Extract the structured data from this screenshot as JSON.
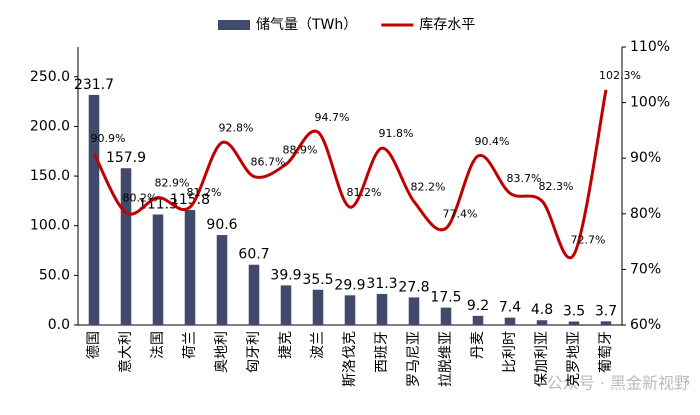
{
  "chart_data": {
    "type": "bar-line",
    "categories": [
      "德国",
      "意大利",
      "法国",
      "荷兰",
      "奥地利",
      "匈牙利",
      "捷克",
      "波兰",
      "斯洛伐克",
      "西班牙",
      "罗马尼亚",
      "拉脱维亚",
      "丹麦",
      "比利时",
      "保加利亚",
      "克罗地亚",
      "葡萄牙"
    ],
    "series": [
      {
        "name": "储气量（TWh）",
        "type": "bar",
        "color": "#404a6b",
        "values": [
          231.7,
          157.9,
          111.3,
          115.8,
          90.6,
          60.7,
          39.9,
          35.5,
          29.9,
          31.3,
          27.8,
          17.5,
          9.2,
          7.4,
          4.8,
          3.5,
          3.7
        ]
      },
      {
        "name": "库存水平",
        "type": "line",
        "axis": "y2",
        "color": "#c00000",
        "values": [
          90.9,
          80.2,
          82.9,
          81.2,
          92.8,
          86.7,
          88.9,
          94.7,
          81.2,
          91.8,
          82.2,
          77.4,
          90.4,
          83.7,
          82.3,
          72.7,
          102.3
        ],
        "value_labels": [
          "90.9%",
          "80.2%",
          "82.9%",
          "81.2%",
          "92.8%",
          "86.7%",
          "88.9%",
          "94.7%",
          "81.2%",
          "91.8%",
          "82.2%",
          "77.4%",
          "90.4%",
          "83.7%",
          "82.3%",
          "72.7%",
          "102.3%"
        ]
      }
    ],
    "ylim": [
      0,
      280
    ],
    "yticks": [
      {
        "value": 0,
        "label": "0.0"
      },
      {
        "value": 50,
        "label": "50.0"
      },
      {
        "value": 100,
        "label": "100.0"
      },
      {
        "value": 150,
        "label": "150.0"
      },
      {
        "value": 200,
        "label": "200.0"
      },
      {
        "value": 250,
        "label": "250.0"
      }
    ],
    "y2lim": [
      60,
      110
    ],
    "y2ticks": [
      {
        "value": 60,
        "label": "60%"
      },
      {
        "value": 70,
        "label": "70%"
      },
      {
        "value": 80,
        "label": "80%"
      },
      {
        "value": 90,
        "label": "90%"
      },
      {
        "value": 100,
        "label": "100%"
      },
      {
        "value": 110,
        "label": "110%"
      }
    ],
    "watermark": "公众号 · 黑金新视野"
  }
}
